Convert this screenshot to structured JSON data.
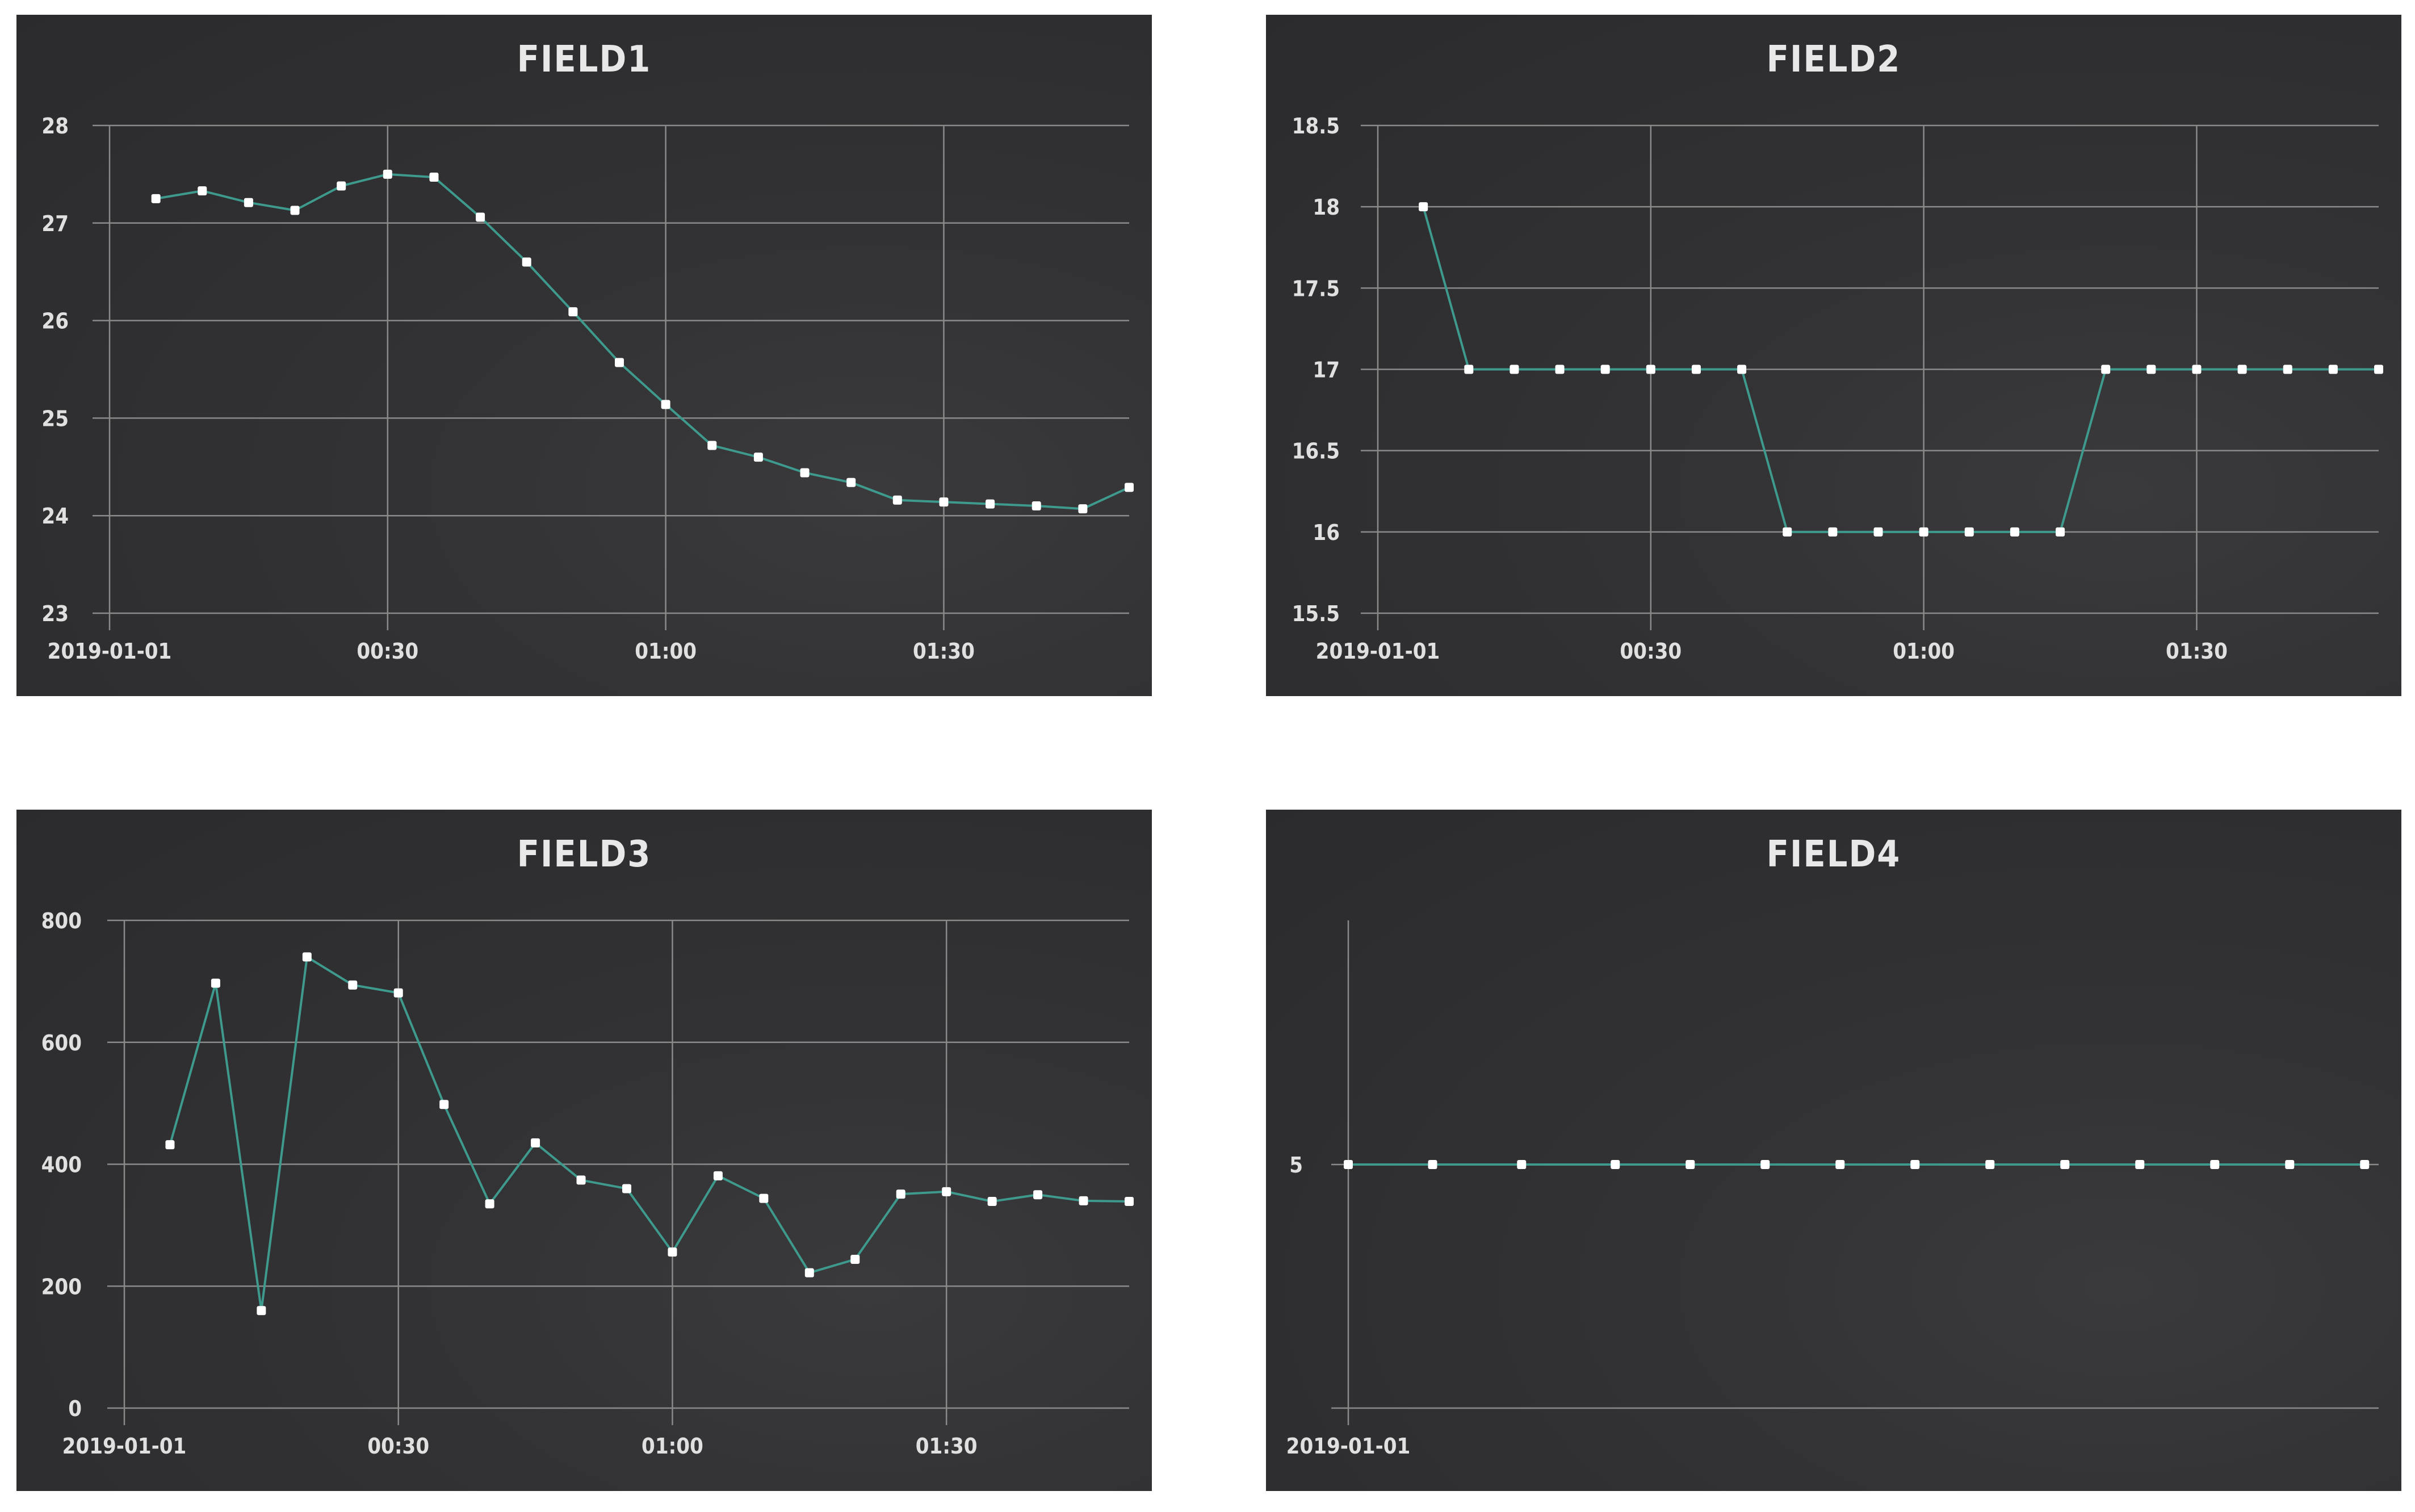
{
  "colors": {
    "panel_bg": "#2e2e30",
    "grid": "#8a8a8a",
    "line": "#3f9a8e",
    "point": "#ffffff",
    "text": "#e0e0e0"
  },
  "chart_data": [
    {
      "id": "p1",
      "type": "line",
      "title": "FIELD1",
      "x_unit": "minutes",
      "xlim": [
        0,
        110
      ],
      "ylim": [
        23,
        28
      ],
      "yticks": [
        23,
        24,
        25,
        26,
        27,
        28
      ],
      "ytick_labels": [
        "23",
        "24",
        "25",
        "26",
        "27",
        "28"
      ],
      "xticks": [
        0,
        30,
        60,
        90
      ],
      "xtick_labels": [
        "2019-01-01",
        "00:30",
        "01:00",
        "01:30"
      ],
      "x": [
        5,
        10,
        15,
        20,
        25,
        30,
        35,
        40,
        45,
        50,
        55,
        60,
        65,
        70,
        75,
        80,
        85,
        90,
        95,
        100,
        105,
        110
      ],
      "y": [
        27.25,
        27.33,
        27.21,
        27.13,
        27.38,
        27.5,
        27.47,
        27.06,
        26.6,
        26.09,
        25.57,
        25.14,
        24.72,
        24.6,
        24.44,
        24.34,
        24.16,
        24.14,
        24.12,
        24.1,
        24.07,
        24.29
      ]
    },
    {
      "id": "p2",
      "type": "line",
      "title": "FIELD2",
      "x_unit": "minutes",
      "xlim": [
        0,
        110
      ],
      "ylim": [
        15.5,
        18.5
      ],
      "yticks": [
        15.5,
        16,
        16.5,
        17,
        17.5,
        18,
        18.5
      ],
      "ytick_labels": [
        "15.5",
        "16",
        "16.5",
        "17",
        "17.5",
        "18",
        "18.5"
      ],
      "xticks": [
        0,
        30,
        60,
        90
      ],
      "xtick_labels": [
        "2019-01-01",
        "00:30",
        "01:00",
        "01:30"
      ],
      "x": [
        5,
        10,
        15,
        20,
        25,
        30,
        35,
        40,
        45,
        50,
        55,
        60,
        65,
        70,
        75,
        80,
        85,
        90,
        95,
        100,
        105,
        110
      ],
      "y": [
        18,
        17,
        17,
        17,
        17,
        17,
        17,
        17,
        16,
        16,
        16,
        16,
        16,
        16,
        16,
        17,
        17,
        17,
        17,
        17,
        17,
        17
      ]
    },
    {
      "id": "p3",
      "type": "line",
      "title": "FIELD3",
      "x_unit": "minutes",
      "xlim": [
        0,
        110
      ],
      "ylim": [
        0,
        800
      ],
      "yticks": [
        0,
        200,
        400,
        600,
        800
      ],
      "ytick_labels": [
        "0",
        "200",
        "400",
        "600",
        "800"
      ],
      "xticks": [
        0,
        30,
        60,
        90
      ],
      "xtick_labels": [
        "2019-01-01",
        "00:30",
        "01:00",
        "01:30"
      ],
      "x": [
        5,
        10,
        15,
        20,
        25,
        30,
        35,
        40,
        45,
        50,
        55,
        60,
        65,
        70,
        75,
        80,
        85,
        90,
        95,
        100,
        105,
        110
      ],
      "y": [
        432,
        697,
        160,
        740,
        694,
        681,
        498,
        335,
        435,
        374,
        360,
        256,
        381,
        344,
        222,
        244,
        351,
        355,
        339,
        350,
        340,
        339
      ]
    },
    {
      "id": "p4",
      "type": "line",
      "title": "FIELD4",
      "x_unit": "minutes",
      "xlim": [
        0,
        110
      ],
      "ylim": [
        4,
        6
      ],
      "yticks": [
        5
      ],
      "ytick_labels": [
        "5"
      ],
      "xticks": [
        0
      ],
      "xtick_labels": [
        "2019-01-01"
      ],
      "hgrid_values": [
        4,
        5
      ],
      "x": [
        0,
        9,
        18.5,
        28.5,
        36.5,
        44.5,
        52.5,
        60.5,
        68.5,
        76.5,
        84.5,
        92.5,
        100.5,
        108.5
      ],
      "y": [
        5,
        5,
        5,
        5,
        5,
        5,
        5,
        5,
        5,
        5,
        5,
        5,
        5,
        5
      ]
    }
  ]
}
